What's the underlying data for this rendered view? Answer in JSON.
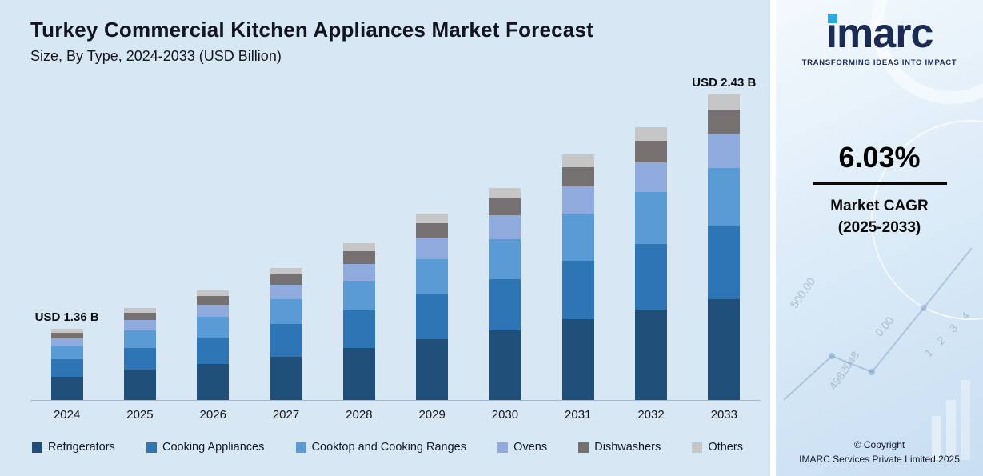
{
  "header": {
    "title": "Turkey Commercial Kitchen Appliances Market Forecast",
    "subtitle": "Size, By Type, 2024-2033 (USD Billion)"
  },
  "chart_data": {
    "type": "bar",
    "stacked": true,
    "categories": [
      "2024",
      "2025",
      "2026",
      "2027",
      "2028",
      "2029",
      "2030",
      "2031",
      "2032",
      "2033"
    ],
    "series": [
      {
        "name": "Refrigerators",
        "color": "#1f4e79",
        "values": [
          0.45,
          0.48,
          0.51,
          0.54,
          0.58,
          0.62,
          0.66,
          0.71,
          0.75,
          0.8
        ]
      },
      {
        "name": "Cooking Appliances",
        "color": "#2e75b6",
        "values": [
          0.33,
          0.35,
          0.37,
          0.4,
          0.42,
          0.45,
          0.48,
          0.51,
          0.55,
          0.58
        ]
      },
      {
        "name": "Cooktop and Cooking Ranges",
        "color": "#5b9bd5",
        "values": [
          0.26,
          0.28,
          0.29,
          0.31,
          0.33,
          0.36,
          0.38,
          0.41,
          0.43,
          0.46
        ]
      },
      {
        "name": "Ovens",
        "color": "#8faadc",
        "values": [
          0.15,
          0.16,
          0.17,
          0.18,
          0.19,
          0.21,
          0.22,
          0.24,
          0.25,
          0.27
        ]
      },
      {
        "name": "Dishwashers",
        "color": "#767171",
        "values": [
          0.11,
          0.12,
          0.12,
          0.13,
          0.14,
          0.15,
          0.16,
          0.17,
          0.18,
          0.19
        ]
      },
      {
        "name": "Others",
        "color": "#c6c6c6",
        "values": [
          0.07,
          0.07,
          0.08,
          0.08,
          0.09,
          0.09,
          0.1,
          0.11,
          0.11,
          0.12
        ]
      }
    ],
    "totals": [
      1.36,
      1.45,
      1.55,
      1.65,
      1.76,
      1.88,
      2.0,
      2.14,
      2.28,
      2.43
    ],
    "annotations": [
      {
        "category_index": 0,
        "text": "USD 1.36 B"
      },
      {
        "category_index": 9,
        "text": "USD 2.43 B"
      }
    ],
    "title": "Turkey Commercial Kitchen Appliances Market Forecast",
    "xlabel": "",
    "ylabel": "USD Billion",
    "value_axis": {
      "min": 1.05,
      "max": 2.5,
      "visible": false
    },
    "grid": false,
    "legend_position": "bottom"
  },
  "right_panel": {
    "logo_text": "imarc",
    "tagline": "TRANSFORMING IDEAS INTO IMPACT",
    "cagr_value": "6.03%",
    "cagr_label_line1": "Market CAGR",
    "cagr_label_line2": "(2025-2033)",
    "copyright_line1": "© Copyright",
    "copyright_line2": "IMARC Services Private Limited 2025",
    "decorative_numbers": [
      "4982048",
      "500.00",
      "0.00",
      "1 2 3 4"
    ]
  },
  "colors": {
    "chart_background": "#d8e7f4",
    "panel_background": "#dcebf8",
    "accent_blue": "#2aa9e0",
    "brand_navy": "#1b2b55"
  }
}
